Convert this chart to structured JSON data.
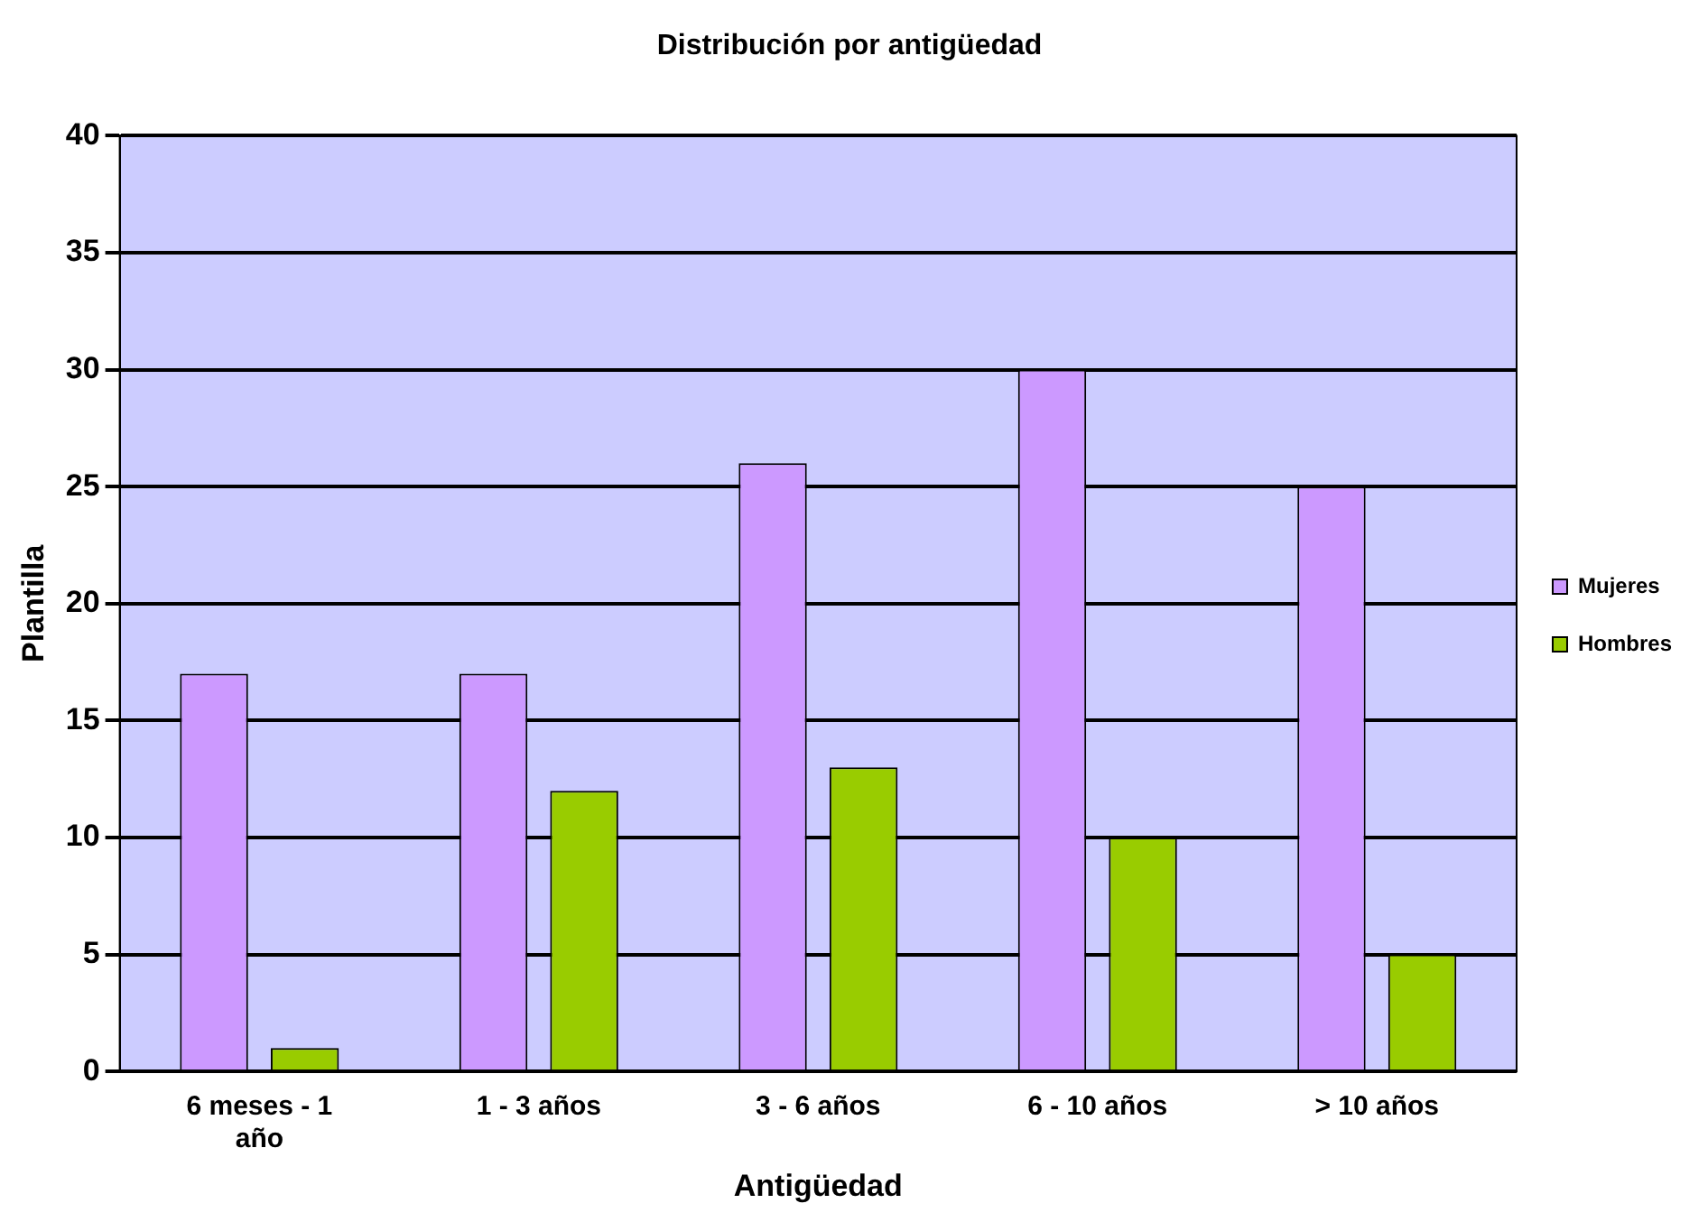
{
  "chart_data": {
    "type": "bar",
    "title": "Distribución por antigüedad",
    "xlabel": "Antigüedad",
    "ylabel": "Plantilla",
    "categories": [
      "6 meses - 1 año",
      "1 - 3 años",
      "3 - 6 años",
      "6 - 10 años",
      "> 10 años"
    ],
    "series": [
      {
        "name": "Mujeres",
        "color": "#cc99ff",
        "values": [
          17,
          17,
          26,
          30,
          25
        ]
      },
      {
        "name": "Hombres",
        "color": "#99cc00",
        "values": [
          1,
          12,
          13,
          10,
          5
        ]
      }
    ],
    "ylim": [
      0,
      40
    ],
    "yticks": [
      0,
      5,
      10,
      15,
      20,
      25,
      30,
      35,
      40
    ],
    "grid": "y",
    "legend": "right"
  }
}
